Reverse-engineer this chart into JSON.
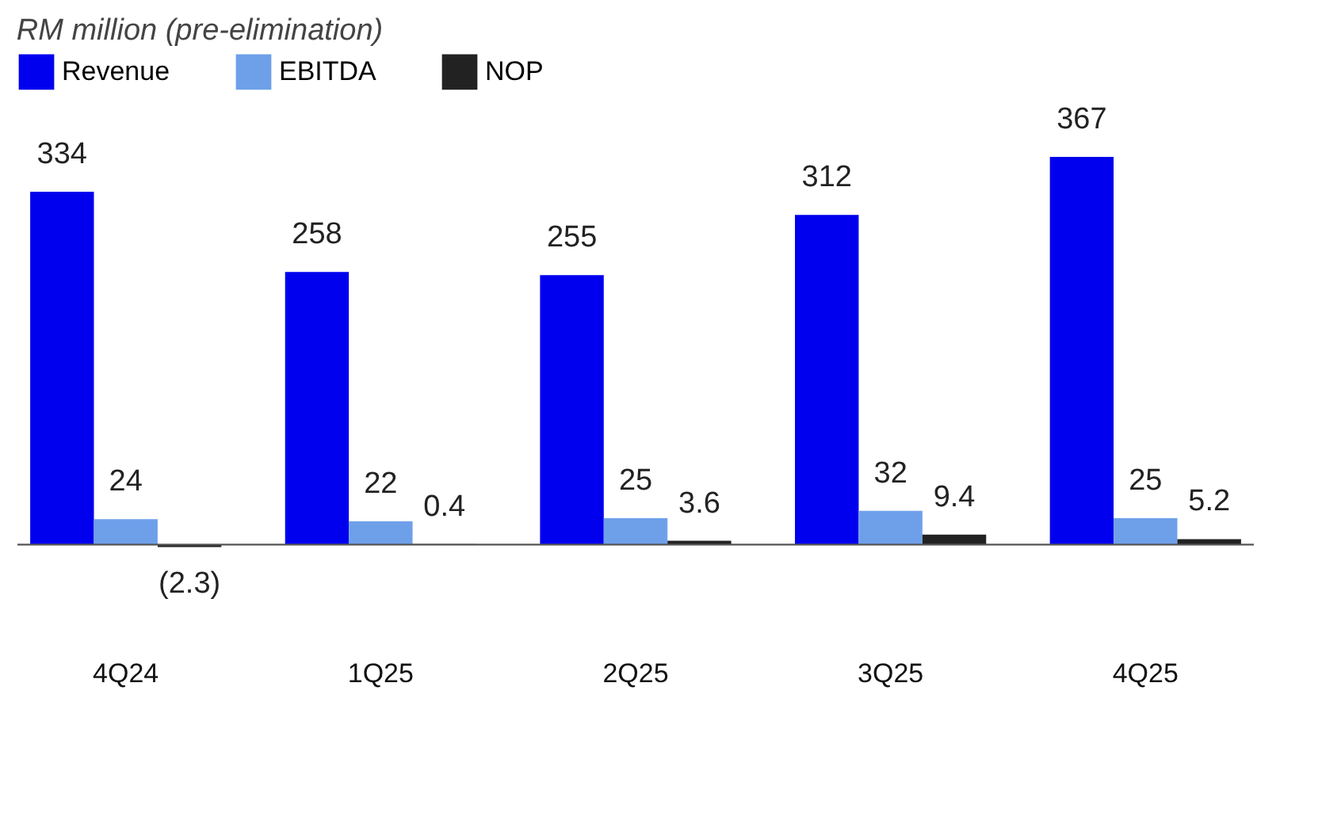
{
  "chart_data": {
    "type": "bar",
    "title": "RM million (pre-elimination)",
    "categories": [
      "4Q24",
      "1Q25",
      "2Q25",
      "3Q25",
      "4Q25"
    ],
    "series": [
      {
        "name": "Revenue",
        "color": "#0000ee",
        "values": [
          334,
          258,
          255,
          312,
          367
        ]
      },
      {
        "name": "EBITDA",
        "color": "#6ea0ea",
        "values": [
          24,
          22,
          25,
          32,
          25
        ]
      },
      {
        "name": "NOP",
        "color": "#222222",
        "values": [
          -2.3,
          0.4,
          3.6,
          9.4,
          5.2
        ],
        "value_labels": [
          "(2.3)",
          "0.4",
          "3.6",
          "9.4",
          "5.2"
        ]
      }
    ],
    "data_labels": true,
    "legend": "top left",
    "grid": false
  }
}
